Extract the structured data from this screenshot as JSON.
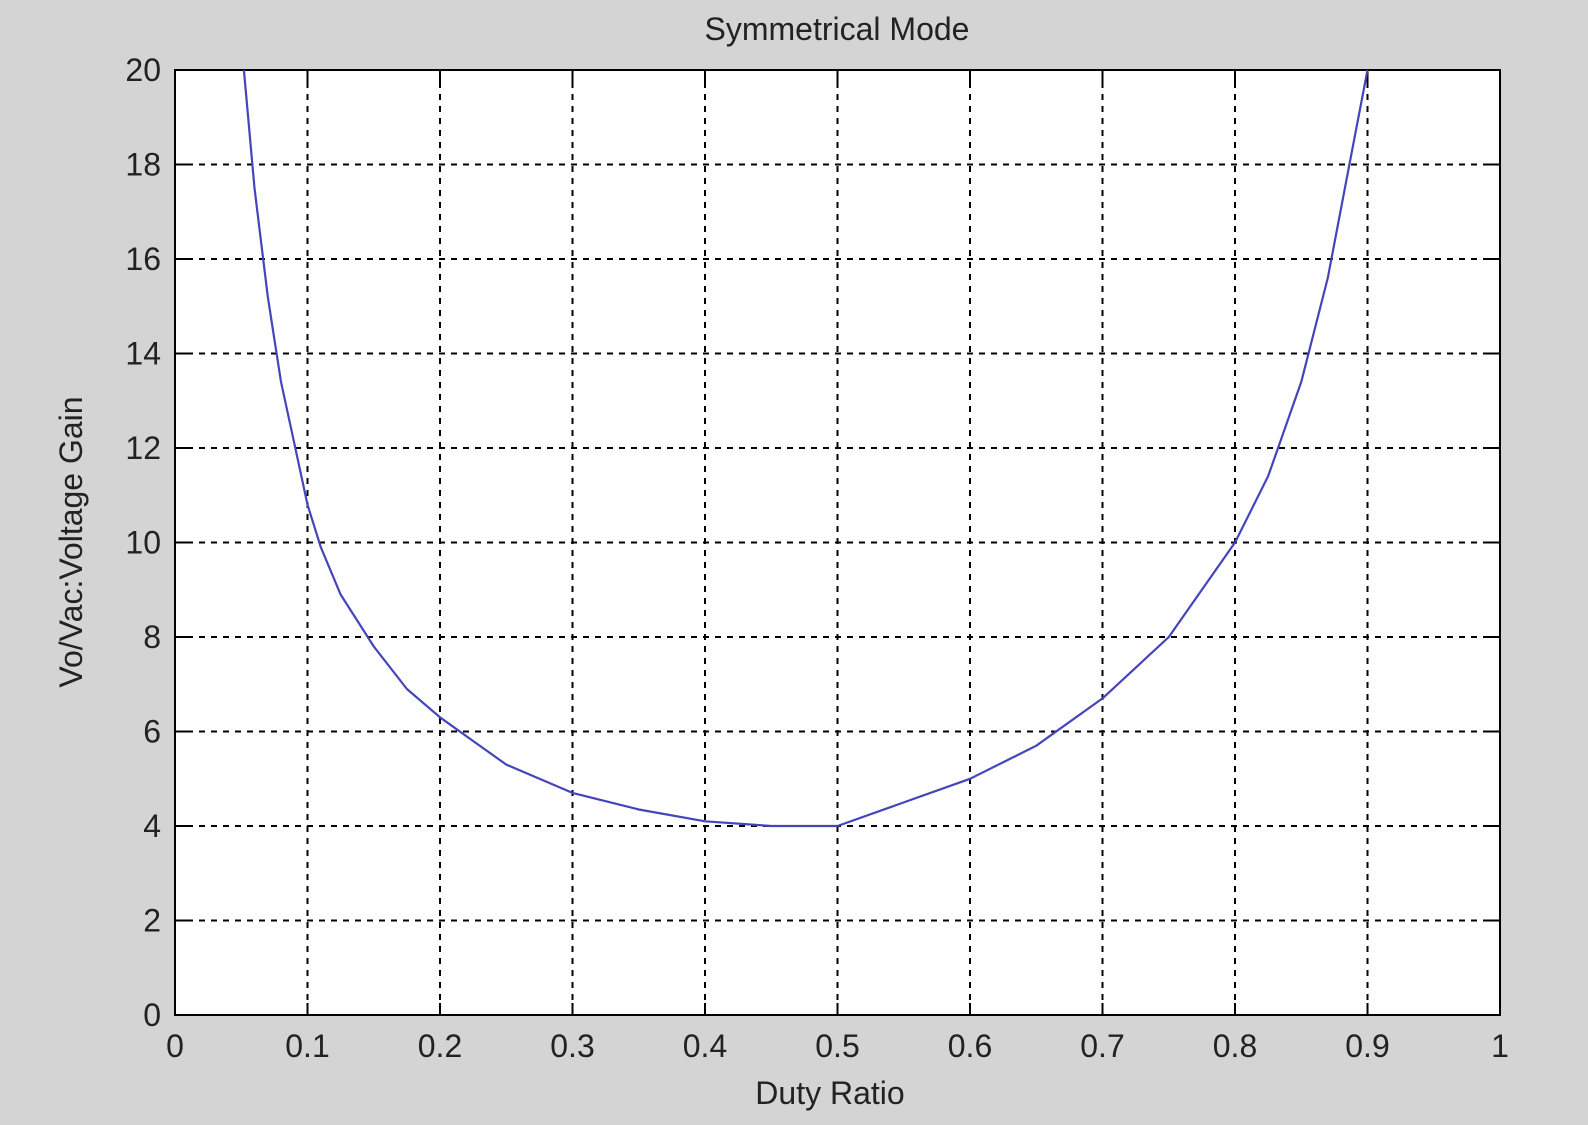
{
  "chart_data": {
    "type": "line",
    "title": "Symmetrical Mode",
    "xlabel": "Duty Ratio",
    "ylabel": "Vo/Vac:Voltage Gain",
    "xlim": [
      0,
      1
    ],
    "ylim": [
      0,
      20
    ],
    "x_ticks": [
      "0",
      "0.1",
      "0.2",
      "0.3",
      "0.4",
      "0.5",
      "0.6",
      "0.7",
      "0.8",
      "0.9",
      "1"
    ],
    "y_ticks": [
      "0",
      "2",
      "4",
      "6",
      "8",
      "10",
      "12",
      "14",
      "16",
      "18",
      "20"
    ],
    "grid": true,
    "series": [
      {
        "color": "#4444bb",
        "x": [
          0.052,
          0.06,
          0.07,
          0.08,
          0.09,
          0.1,
          0.11,
          0.125,
          0.15,
          0.175,
          0.2,
          0.225,
          0.25,
          0.3,
          0.35,
          0.4,
          0.45,
          0.5,
          0.55,
          0.6,
          0.65,
          0.7,
          0.75,
          0.8,
          0.825,
          0.85,
          0.87,
          0.885,
          0.9
        ],
        "y": [
          20,
          17.5,
          15.2,
          13.4,
          12.1,
          10.8,
          9.9,
          8.9,
          7.8,
          6.9,
          6.3,
          5.8,
          5.3,
          4.7,
          4.35,
          4.1,
          4.0,
          4.0,
          4.5,
          5.0,
          5.7,
          6.7,
          8.0,
          10.0,
          11.4,
          13.4,
          15.6,
          17.8,
          20
        ]
      }
    ]
  }
}
